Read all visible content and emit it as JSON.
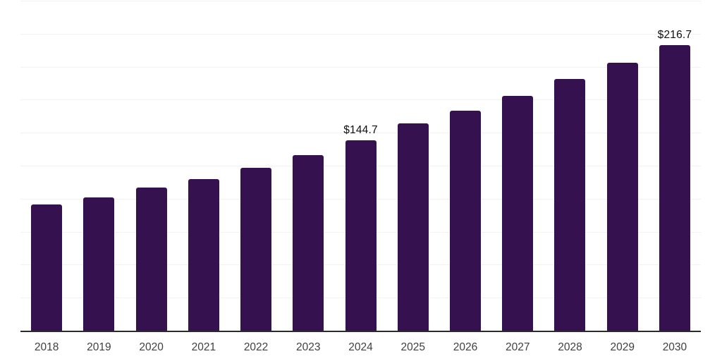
{
  "page": {
    "background": "#ffffff"
  },
  "chart_data": {
    "type": "bar",
    "title": "",
    "xlabel": "",
    "ylabel": "",
    "categories": [
      "2018",
      "2019",
      "2020",
      "2021",
      "2022",
      "2023",
      "2024",
      "2025",
      "2026",
      "2027",
      "2028",
      "2029",
      "2030"
    ],
    "values": [
      96.0,
      101.6,
      108.9,
      115.4,
      124.0,
      133.5,
      144.7,
      157.4,
      167.4,
      178.6,
      191.4,
      203.8,
      216.7
    ],
    "annotations": [
      {
        "category": "2024",
        "text": "$144.7"
      },
      {
        "category": "2030",
        "text": "$216.7"
      }
    ],
    "ylim": [
      0,
      250
    ],
    "grid_step": 25,
    "grid": true,
    "y_tick_labels_visible": false,
    "legend": false,
    "bar_color": "#351150",
    "grid_color": "#f2f2f2",
    "axis_color": "#2b2b2b",
    "tick_label_color": "#404040",
    "annotation_color": "#0f0f0f"
  }
}
